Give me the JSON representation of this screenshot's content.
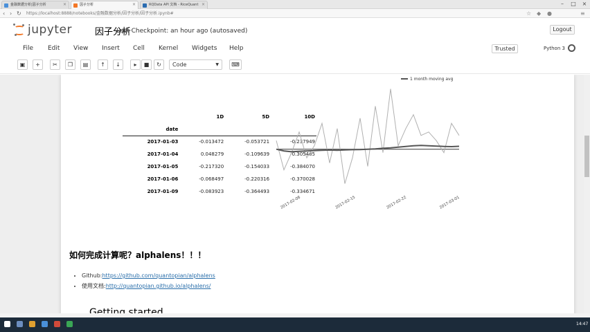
{
  "browser": {
    "tabs": [
      {
        "label": "金融数据分析|因子分析",
        "active": false
      },
      {
        "label": "因子分析",
        "active": true
      },
      {
        "label": "RQData API 文档 - RiceQuant",
        "active": false
      }
    ],
    "url_host": "localhost",
    "url_rest": "https://localhost:8888/notebooks/金融数据分析/因子分析/因子分析.ipynb#",
    "url_prefix": "https://"
  },
  "jupyter": {
    "brand": "jupyter",
    "notebook_name": "因子分析",
    "checkpoint": "Last Checkpoint: an hour ago (autosaved)",
    "logout": "Logout",
    "trusted": "Trusted",
    "kernel": "Python 3",
    "menu": [
      "File",
      "Edit",
      "View",
      "Insert",
      "Cell",
      "Kernel",
      "Widgets",
      "Help"
    ],
    "cell_type": "Code"
  },
  "dataframe": {
    "columns": [
      "1D",
      "5D",
      "10D"
    ],
    "index_name": "date",
    "rows": [
      {
        "date": "2017-01-03",
        "1D": "-0.013472",
        "5D": "-0.053721",
        "10D": "-0.237949"
      },
      {
        "date": "2017-01-04",
        "1D": "0.048279",
        "5D": "-0.109639",
        "10D": "-0.305485"
      },
      {
        "date": "2017-01-05",
        "1D": "-0.217320",
        "5D": "-0.154033",
        "10D": "-0.384070"
      },
      {
        "date": "2017-01-06",
        "1D": "-0.068497",
        "5D": "-0.220316",
        "10D": "-0.370028"
      },
      {
        "date": "2017-01-09",
        "1D": "-0.083923",
        "5D": "-0.364493",
        "10D": "-0.334671"
      }
    ]
  },
  "chart_data": {
    "type": "line",
    "legend": [
      "1 month moving avg"
    ],
    "x_ticks": [
      "2017-02-08",
      "2017-02-15",
      "2017-02-22",
      "2017-03-01"
    ],
    "series": [
      {
        "name": "",
        "values": [
          0.05,
          -0.12,
          -0.02,
          0.1,
          -0.05,
          0.02,
          0.15,
          -0.08,
          0.12,
          -0.2,
          -0.05,
          0.18,
          -0.1,
          0.25,
          -0.02,
          0.35,
          0.02,
          0.12,
          0.2,
          0.08,
          0.1,
          0.05,
          -0.02,
          0.15,
          0.08
        ]
      },
      {
        "name": "1 month moving avg",
        "values": [
          0.0,
          -0.01,
          -0.015,
          -0.012,
          -0.01,
          -0.008,
          -0.006,
          -0.005,
          -0.006,
          -0.004,
          -0.003,
          -0.002,
          0.0,
          0.002,
          0.005,
          0.008,
          0.012,
          0.016,
          0.02,
          0.022,
          0.02,
          0.018,
          0.016,
          0.015,
          0.017
        ]
      }
    ],
    "hline": 0,
    "colors": {
      "daily": "#b0b0b0",
      "avg": "#555555",
      "zero": "#333333"
    }
  },
  "content": {
    "heading": "如何完成计算呢？alphalens！！！",
    "bullets": [
      {
        "label": "Github:",
        "link": "https://github.com/quantopian/alphalens"
      },
      {
        "label": "使用文档:",
        "link": "http://quantopian.github.io/alphalens/"
      }
    ],
    "getting_started": "Getting started"
  },
  "taskbar": {
    "time": "14:47"
  }
}
